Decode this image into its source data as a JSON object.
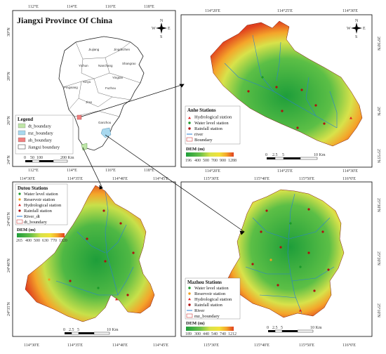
{
  "main_map": {
    "title": "Jiangxi Province Of China",
    "top_ticks": [
      "112°E",
      "114°E",
      "116°E",
      "118°E"
    ],
    "bottom_ticks": [
      "112°E",
      "114°E",
      "116°E",
      "118°E"
    ],
    "left_ticks": [
      "30°N",
      "28°N",
      "26°N",
      "24°N"
    ],
    "cities": [
      "Jiujiang",
      "Jingdezhen",
      "Yichun",
      "Nanchang",
      "Shangrao",
      "Pingxiang",
      "Xinyu",
      "Yingtan",
      "Fuzhou",
      "Ji'an",
      "Ganzhou"
    ],
    "legend": {
      "title": "Legend",
      "items": [
        {
          "label": "dt_boundary",
          "color": "#bfe6a8"
        },
        {
          "label": "mz_boundary",
          "color": "#a8d8ee"
        },
        {
          "label": "ah_boundary",
          "color": "#f08080"
        },
        {
          "label": "Jiangxi boundary",
          "color": "#ffffff"
        }
      ]
    },
    "scale": [
      "0",
      "50",
      "100",
      "200 Km"
    ]
  },
  "anhe": {
    "top_ticks": [
      "114°20'E",
      "114°25'E",
      "114°30'E"
    ],
    "bottom_ticks": [
      "114°20'E",
      "114°25'E",
      "114°30'E"
    ],
    "right_ticks": [
      "26°30'N",
      "26°N",
      "25°55'N"
    ],
    "stations_title": "Anhe Stations",
    "legend": [
      {
        "label": "Hydrological station",
        "symbol": "triangle",
        "color": "#e02020"
      },
      {
        "label": "Water level station",
        "symbol": "dot",
        "color": "#1a9a2a"
      },
      {
        "label": "Rainfall station",
        "symbol": "dot",
        "color": "#b01010"
      },
      {
        "label": "river",
        "symbol": "line",
        "color": "#2a7fd4"
      },
      {
        "label": "Boundary",
        "symbol": "box",
        "color": "#d04040"
      }
    ],
    "dem_label": "DEM (m)",
    "dem_ticks": [
      "196",
      "400",
      "500",
      "700",
      "900",
      "1288"
    ],
    "scale": [
      "0",
      "2.5",
      "5",
      "10 Km"
    ]
  },
  "dutou": {
    "top_ticks": [
      "114°30'E",
      "114°35'E",
      "114°40'E",
      "114°45'E"
    ],
    "bottom_ticks": [
      "114°30'E",
      "114°35'E",
      "114°40'E",
      "114°45'E"
    ],
    "left_ticks": [
      "24°45'N",
      "24°40'N",
      "24°35'N"
    ],
    "stations_title": "Dutou Stations",
    "legend": [
      {
        "label": "Water level station",
        "symbol": "dot",
        "color": "#1a9a2a"
      },
      {
        "label": "Reservoir station",
        "symbol": "dot",
        "color": "#f0a020"
      },
      {
        "label": "Hydrological station",
        "symbol": "triangle",
        "color": "#e02020"
      },
      {
        "label": "Rainfall station",
        "symbol": "dot",
        "color": "#b01010"
      },
      {
        "label": "River_dt",
        "symbol": "line",
        "color": "#2a7fd4"
      },
      {
        "label": "dt_boundary",
        "symbol": "box",
        "color": "#d04040"
      }
    ],
    "dem_label": "DEM (m)",
    "dem_ticks": [
      "265",
      "400",
      "500",
      "630",
      "770",
      "1120"
    ],
    "scale": [
      "0",
      "2.5",
      "5",
      "10 Km"
    ]
  },
  "mazhou": {
    "top_ticks": [
      "115°30'E",
      "115°40'E",
      "115°50'E",
      "116°0'E"
    ],
    "bottom_ticks": [
      "115°30'E",
      "115°40'E",
      "115°50'E",
      "116°0'E"
    ],
    "right_ticks": [
      "25°30'N",
      "25°20'N",
      "25°10'N"
    ],
    "stations_title": "Mazhou Stations",
    "legend": [
      {
        "label": "Water level station",
        "symbol": "dot",
        "color": "#1a9a2a"
      },
      {
        "label": "Reservoir station",
        "symbol": "dot",
        "color": "#f0a020"
      },
      {
        "label": "Hydrological station",
        "symbol": "triangle",
        "color": "#e02020"
      },
      {
        "label": "Rainfall station",
        "symbol": "dot",
        "color": "#b01010"
      },
      {
        "label": "River",
        "symbol": "line",
        "color": "#2a7fd4"
      },
      {
        "label": "mz_boundary",
        "symbol": "box",
        "color": "#d04040"
      }
    ],
    "dem_label": "DEM (m)",
    "dem_ticks": [
      "189",
      "300",
      "440",
      "540",
      "740",
      "1212"
    ],
    "scale": [
      "0",
      "2.5",
      "5",
      "10 Km"
    ]
  },
  "compass": {
    "n": "N",
    "s": "S",
    "e": "E",
    "w": "W"
  },
  "dem_colors": [
    "#1e9e3a",
    "#6cc24a",
    "#c8e04a",
    "#f2e23a",
    "#f4a52a",
    "#e0401e"
  ]
}
